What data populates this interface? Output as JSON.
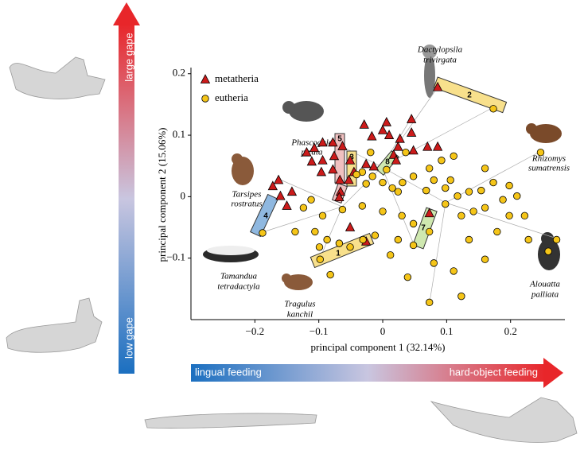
{
  "chart_data": {
    "type": "scatter",
    "xlabel": "principal component 1 (32.14%)",
    "ylabel": "principal component 2 (15.06%)",
    "xlim": [
      -0.3,
      0.285
    ],
    "ylim": [
      -0.2,
      0.21
    ],
    "xticks": [
      {
        "value": -0.2,
        "label": "−0.2"
      },
      {
        "value": -0.1,
        "label": "−0.1"
      },
      0,
      0.1,
      0.2
    ],
    "yticks": [
      {
        "value": -0.1,
        "label": "−0.1"
      },
      0,
      0.1,
      0.2
    ],
    "legend": "top-left",
    "series": [
      {
        "name": "metatheria",
        "color": "#cc1b1b",
        "marker": "triangle",
        "x": [
          0.086,
          0.006,
          0,
          0.01,
          -0.029,
          -0.017,
          0.045,
          0.045,
          0.07,
          0.086,
          0.048,
          0.027,
          0.017,
          0.021,
          -0.063,
          -0.078,
          -0.094,
          -0.107,
          -0.119,
          -0.111,
          -0.094,
          -0.076,
          -0.078,
          -0.096,
          -0.051,
          -0.045,
          -0.053,
          -0.067,
          -0.066,
          -0.026,
          -0.014,
          -0.163,
          -0.172,
          -0.16,
          -0.15,
          -0.142,
          -0.068,
          -0.026,
          0.073,
          -0.051,
          0.024
        ],
        "y": [
          0.178,
          0.121,
          0.108,
          0.1,
          0.117,
          0.098,
          0.126,
          0.104,
          0.081,
          0.081,
          0.075,
          0.094,
          0.068,
          0.059,
          0.082,
          0.088,
          0.088,
          0.079,
          0.072,
          0.057,
          0.059,
          0.066,
          0.044,
          0.04,
          0.059,
          0.04,
          0.027,
          0.027,
          0.008,
          0.053,
          0.049,
          0.027,
          0.017,
          0.001,
          -0.015,
          0.008,
          -0.001,
          -0.073,
          -0.027,
          -0.05,
          0.081
        ]
      },
      {
        "name": "eutheria",
        "color": "#f5c518",
        "marker": "circle",
        "x": [
          0.173,
          0.247,
          -0.188,
          -0.098,
          0.048,
          -0.032,
          -0.041,
          -0.016,
          0.006,
          -0.026,
          0,
          0.015,
          0.031,
          0.048,
          0.036,
          0.073,
          0.092,
          0.111,
          0.08,
          0.098,
          0.117,
          0.135,
          0.154,
          0.173,
          0.188,
          0.198,
          0.179,
          0.21,
          0.222,
          0.16,
          0.142,
          0.123,
          0.098,
          0.073,
          0.048,
          0.03,
          0.024,
          0.012,
          -0.012,
          -0.031,
          -0.051,
          -0.068,
          -0.087,
          -0.099,
          -0.106,
          -0.094,
          -0.124,
          -0.112,
          -0.137,
          -0.082,
          0.073,
          0.111,
          0.123,
          0.16,
          0.08,
          0.039,
          0.135,
          -0.032,
          -0.063,
          0,
          -0.019,
          0.024,
          0.068,
          0.106,
          0.16,
          0.198,
          0.272,
          0.259,
          0.228
        ],
        "y": [
          0.143,
          0.072,
          -0.059,
          -0.102,
          -0.079,
          0.04,
          0.036,
          0.033,
          0.044,
          0.021,
          0.023,
          0.014,
          0.023,
          0.033,
          0.072,
          0.046,
          0.059,
          0.066,
          0.027,
          0.014,
          0.001,
          0.008,
          0.01,
          0.023,
          -0.005,
          -0.031,
          -0.057,
          0.001,
          -0.031,
          -0.018,
          -0.024,
          -0.031,
          -0.012,
          -0.057,
          -0.044,
          -0.031,
          -0.07,
          -0.095,
          -0.063,
          -0.07,
          -0.082,
          -0.076,
          -0.07,
          -0.082,
          -0.057,
          -0.031,
          -0.018,
          -0.005,
          -0.057,
          -0.127,
          -0.172,
          -0.121,
          -0.162,
          -0.102,
          -0.108,
          -0.131,
          -0.07,
          -0.015,
          -0.021,
          -0.024,
          0.072,
          0.008,
          0.01,
          0.027,
          0.046,
          0.018,
          -0.07,
          -0.089,
          -0.07
        ]
      }
    ],
    "annotations": [
      [
        "Dactylopsila",
        "trivirgata"
      ],
      [
        "Phascogale",
        "pirata"
      ],
      [
        "Rhizomys",
        "sumatrensis"
      ],
      [
        "Tarsipes",
        "rostratus"
      ],
      [
        "Tamandua",
        "tetradactyla"
      ],
      [
        "Tragulus",
        "kanchil"
      ],
      [
        "Alouatta",
        "palliata"
      ]
    ],
    "highlight_labels": [
      1,
      2,
      3,
      4,
      5,
      6,
      7,
      8
    ],
    "gradient_labels": [
      "large gape",
      "low gape",
      "lingual feeding",
      "hard-object feeding"
    ]
  }
}
